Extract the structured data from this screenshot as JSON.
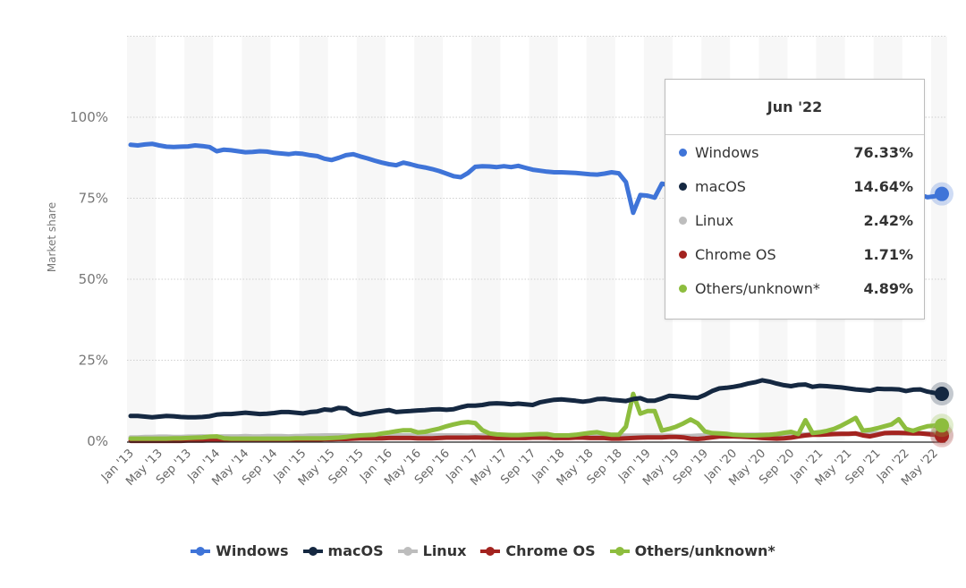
{
  "chart_data": {
    "type": "line",
    "ylabel": "Market share",
    "ylim": [
      0,
      125
    ],
    "yticks": [
      "0%",
      "25%",
      "50%",
      "75%",
      "100%"
    ],
    "ytick_values": [
      0,
      25,
      50,
      75,
      100
    ],
    "grid": true,
    "legend_position": "bottom",
    "x_start": "Jan '13",
    "x_end": "Jun '22",
    "x_frequency": "monthly",
    "xtick_labels": [
      "Jan '13",
      "May '13",
      "Sep '13",
      "Jan '14",
      "May '14",
      "Sep '14",
      "Jan '15",
      "May '15",
      "Sep '15",
      "Jan '16",
      "May '16",
      "Sep '16",
      "Jan '17",
      "May '17",
      "Sep '17",
      "Jan '18",
      "May '18",
      "Sep '18",
      "Jan '19",
      "May '19",
      "Sep '19",
      "Jan '20",
      "May '20",
      "Sep '20",
      "Jan '21",
      "May '21",
      "Sep '21",
      "Jan '22",
      "May '22"
    ],
    "series": [
      {
        "name": "Windows",
        "color": "#3f74d8",
        "values": [
          91.5,
          91.3,
          91.6,
          91.8,
          91.3,
          90.9,
          90.8,
          90.9,
          91.0,
          91.3,
          91.1,
          90.8,
          89.5,
          90.0,
          89.8,
          89.5,
          89.2,
          89.3,
          89.5,
          89.4,
          89.0,
          88.8,
          88.6,
          88.9,
          88.7,
          88.3,
          88.0,
          87.2,
          86.8,
          87.5,
          88.3,
          88.6,
          87.9,
          87.3,
          86.6,
          86.0,
          85.5,
          85.2,
          86.0,
          85.5,
          84.9,
          84.5,
          84.0,
          83.4,
          82.6,
          81.8,
          81.5,
          82.8,
          84.7,
          84.9,
          84.8,
          84.6,
          84.9,
          84.6,
          85.0,
          84.4,
          83.8,
          83.5,
          83.2,
          83.0,
          83.0,
          82.9,
          82.8,
          82.6,
          82.4,
          82.3,
          82.6,
          83.0,
          82.7,
          80.0,
          70.5,
          76.0,
          75.8,
          75.2,
          79.5,
          79.0,
          78.5,
          78.0,
          77.5,
          77.0,
          77.8,
          78.0,
          77.5,
          77.0,
          76.5,
          76.0,
          75.8,
          75.5,
          75.2,
          76.0,
          76.5,
          77.0,
          76.5,
          76.0,
          75.0,
          75.5,
          75.8,
          76.0,
          76.2,
          75.5,
          75.0,
          74.5,
          74.0,
          75.5,
          76.0,
          75.8,
          75.5,
          75.0,
          75.5,
          75.8,
          76.0,
          75.3,
          75.6,
          76.33
        ]
      },
      {
        "name": "macOS",
        "color": "#152841",
        "values": [
          7.8,
          7.8,
          7.6,
          7.4,
          7.6,
          7.8,
          7.7,
          7.5,
          7.4,
          7.4,
          7.5,
          7.7,
          8.2,
          8.4,
          8.4,
          8.6,
          8.8,
          8.6,
          8.4,
          8.5,
          8.7,
          9.0,
          9.0,
          8.8,
          8.6,
          9.0,
          9.2,
          9.8,
          9.6,
          10.3,
          10.1,
          8.7,
          8.2,
          8.6,
          9.0,
          9.3,
          9.6,
          9.0,
          9.2,
          9.3,
          9.5,
          9.6,
          9.8,
          9.9,
          9.7,
          9.9,
          10.5,
          11.0,
          11.0,
          11.2,
          11.6,
          11.7,
          11.6,
          11.4,
          11.6,
          11.4,
          11.2,
          12.0,
          12.4,
          12.8,
          12.9,
          12.7,
          12.5,
          12.2,
          12.5,
          13.0,
          13.1,
          12.8,
          12.6,
          12.4,
          13.0,
          13.3,
          12.5,
          12.5,
          13.2,
          14.0,
          13.9,
          13.7,
          13.5,
          13.4,
          14.3,
          15.5,
          16.3,
          16.5,
          16.8,
          17.2,
          17.8,
          18.2,
          18.8,
          18.4,
          17.8,
          17.3,
          17.0,
          17.4,
          17.5,
          16.8,
          17.1,
          17.0,
          16.8,
          16.6,
          16.3,
          16.0,
          15.8,
          15.6,
          16.2,
          16.1,
          16.1,
          16.0,
          15.5,
          15.9,
          16.0,
          15.3,
          14.9,
          14.64
        ]
      },
      {
        "name": "Linux",
        "color": "#bdbdbd",
        "values": [
          1.2,
          1.2,
          1.3,
          1.3,
          1.4,
          1.4,
          1.3,
          1.3,
          1.4,
          1.4,
          1.5,
          1.4,
          1.4,
          1.5,
          1.5,
          1.5,
          1.6,
          1.5,
          1.5,
          1.6,
          1.6,
          1.6,
          1.5,
          1.6,
          1.6,
          1.7,
          1.7,
          1.8,
          1.8,
          1.8,
          1.7,
          1.7,
          1.8,
          1.8,
          1.8,
          1.8,
          1.8,
          1.8,
          1.8,
          1.8,
          1.7,
          1.7,
          1.7,
          1.8,
          1.8,
          1.8,
          1.8,
          1.7,
          1.7,
          1.8,
          1.8,
          1.8,
          1.9,
          1.9,
          1.8,
          1.8,
          1.8,
          1.8,
          1.8,
          1.8,
          1.8,
          1.8,
          1.9,
          1.9,
          1.9,
          1.8,
          1.8,
          1.8,
          1.8,
          1.7,
          1.7,
          1.7,
          1.7,
          1.7,
          1.7,
          1.7,
          1.6,
          1.6,
          1.6,
          1.7,
          1.8,
          1.9,
          1.9,
          1.9,
          1.9,
          1.9,
          2.0,
          2.0,
          2.0,
          2.0,
          2.0,
          2.1,
          2.1,
          2.1,
          2.1,
          2.2,
          2.2,
          2.2,
          2.3,
          2.3,
          2.3,
          2.3,
          2.3,
          2.3,
          2.4,
          2.4,
          2.4,
          2.4,
          2.4,
          2.4,
          2.4,
          2.4,
          2.4,
          2.42
        ]
      },
      {
        "name": "Chrome OS",
        "color": "#a3231f",
        "values": [
          0.1,
          0.1,
          0.1,
          0.1,
          0.1,
          0.1,
          0.1,
          0.1,
          0.2,
          0.2,
          0.2,
          0.3,
          0.4,
          0.3,
          0.3,
          0.3,
          0.3,
          0.3,
          0.3,
          0.3,
          0.3,
          0.4,
          0.4,
          0.4,
          0.4,
          0.5,
          0.5,
          0.6,
          0.6,
          0.7,
          0.7,
          0.8,
          0.9,
          0.9,
          0.9,
          0.9,
          1.0,
          1.0,
          1.0,
          1.0,
          0.9,
          0.9,
          0.9,
          1.0,
          1.1,
          1.1,
          1.1,
          1.1,
          1.2,
          1.1,
          1.1,
          1.0,
          1.0,
          1.0,
          1.0,
          1.0,
          1.1,
          1.1,
          1.1,
          1.0,
          1.0,
          1.0,
          1.1,
          1.1,
          1.0,
          1.0,
          1.0,
          0.8,
          0.8,
          0.9,
          1.0,
          1.1,
          1.2,
          1.2,
          1.2,
          1.3,
          1.3,
          1.2,
          0.8,
          0.7,
          0.9,
          1.2,
          1.5,
          1.5,
          1.5,
          1.4,
          1.3,
          1.2,
          1.0,
          0.9,
          0.8,
          0.9,
          1.1,
          1.5,
          1.8,
          2.0,
          2.0,
          2.1,
          2.2,
          2.3,
          2.3,
          2.4,
          1.8,
          1.5,
          2.0,
          2.5,
          2.6,
          2.6,
          2.5,
          2.4,
          2.4,
          2.2,
          2.0,
          1.71
        ]
      },
      {
        "name": "Others/unknown*",
        "color": "#8dbd3e",
        "values": [
          0.8,
          0.8,
          0.8,
          0.8,
          0.8,
          0.8,
          0.9,
          0.9,
          1.0,
          1.1,
          1.2,
          1.4,
          1.5,
          0.9,
          0.8,
          0.8,
          0.8,
          0.8,
          0.8,
          0.8,
          0.8,
          0.8,
          0.8,
          0.9,
          0.9,
          0.9,
          0.9,
          0.9,
          1.0,
          1.1,
          1.3,
          1.6,
          1.8,
          1.9,
          2.0,
          2.4,
          2.7,
          3.1,
          3.4,
          3.4,
          2.7,
          2.9,
          3.4,
          3.9,
          4.6,
          5.2,
          5.7,
          5.9,
          5.6,
          3.4,
          2.4,
          2.1,
          2.0,
          1.9,
          1.9,
          2.0,
          2.1,
          2.2,
          2.2,
          1.8,
          1.8,
          1.8,
          2.0,
          2.3,
          2.6,
          2.8,
          2.3,
          2.0,
          2.0,
          4.5,
          14.6,
          8.5,
          9.3,
          9.3,
          3.3,
          3.8,
          4.5,
          5.5,
          6.7,
          5.5,
          3.0,
          2.5,
          2.4,
          2.3,
          2.0,
          1.9,
          1.8,
          1.8,
          1.9,
          2.0,
          2.2,
          2.6,
          2.9,
          2.2,
          6.5,
          2.5,
          2.8,
          3.2,
          3.8,
          4.8,
          6.0,
          7.2,
          3.3,
          3.5,
          4.0,
          4.6,
          5.2,
          6.8,
          3.8,
          3.2,
          4.0,
          4.6,
          4.8,
          4.89
        ]
      }
    ]
  },
  "tooltip": {
    "title": "Jun '22",
    "rows": [
      {
        "label": "Windows",
        "value": "76.33%",
        "color": "#3f74d8"
      },
      {
        "label": "macOS",
        "value": "14.64%",
        "color": "#152841"
      },
      {
        "label": "Linux",
        "value": "2.42%",
        "color": "#bdbdbd"
      },
      {
        "label": "Chrome OS",
        "value": "1.71%",
        "color": "#a3231f"
      },
      {
        "label": "Others/unknown*",
        "value": "4.89%",
        "color": "#8dbd3e"
      }
    ]
  }
}
